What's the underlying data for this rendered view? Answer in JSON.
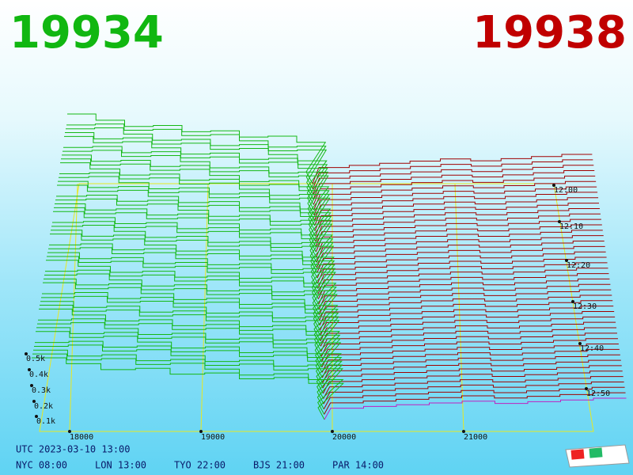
{
  "header": {
    "bid": "19934",
    "ask": "19938"
  },
  "price_axis": {
    "labels": [
      "18000",
      "19000",
      "20000",
      "21000"
    ]
  },
  "depth_axis": {
    "labels": [
      "0.5k",
      "0.4k",
      "0.3k",
      "0.2k",
      "0.1k"
    ]
  },
  "time_axis": {
    "labels": [
      "12:00",
      "12:10",
      "12:20",
      "12:30",
      "12:40",
      "12:50"
    ]
  },
  "footer": {
    "utc": "UTC 2023-03-10 13:00",
    "cities": [
      "NYC 08:00",
      "LON 13:00",
      "TYO 22:00",
      "BJS 21:00",
      "PAR 14:00"
    ]
  }
}
